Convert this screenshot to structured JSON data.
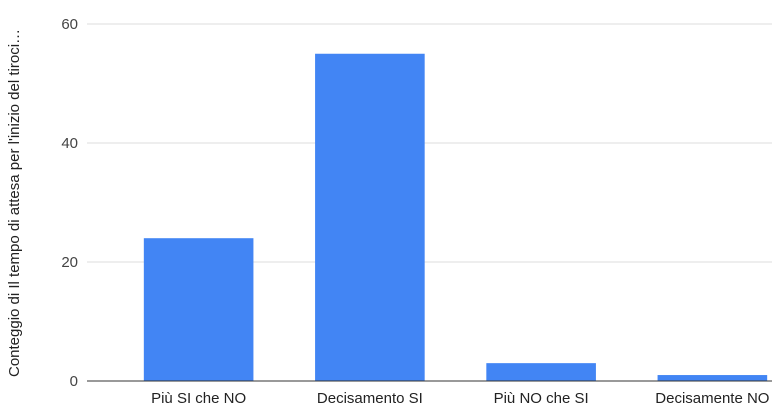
{
  "chart_data": {
    "type": "bar",
    "title": "",
    "xlabel": "",
    "ylabel": "Conteggio di Il tempo di attesa per l'inizio del tiroci…",
    "categories": [
      "Più SI che NO",
      "Decisamento SI",
      "Più NO che SI",
      "Decisamente NO"
    ],
    "values": [
      24,
      55,
      3,
      1
    ],
    "ylim": [
      0,
      60
    ],
    "yticks": [
      0,
      20,
      40,
      60
    ],
    "grid": true,
    "legend": "none",
    "bar_color": "#4285f4",
    "grid_color": "#dddddd",
    "axis_color": "#333333"
  }
}
